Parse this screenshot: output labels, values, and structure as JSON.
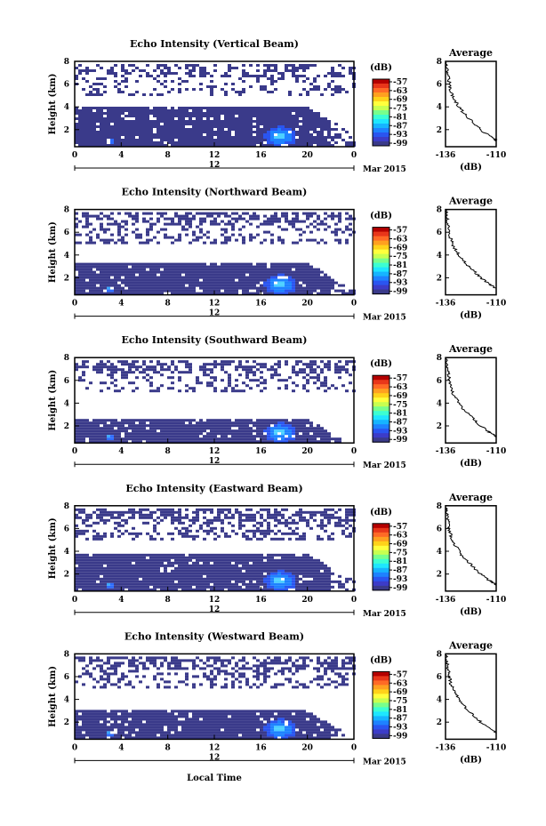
{
  "chart_data": {
    "type": "heatmap",
    "x_ticks": [
      "0",
      "4",
      "8",
      "12",
      "16",
      "20",
      "0"
    ],
    "y_ticks": [
      "8",
      "6",
      "4",
      "2"
    ],
    "day_label": "12",
    "month_label": "Mar 2015",
    "xlabel": "Local Time",
    "ylabel": "Height (km)",
    "colorbar": {
      "unit": "(dB)",
      "labels": [
        "-57",
        "-63",
        "-69",
        "-75",
        "-81",
        "-87",
        "-93",
        "-99"
      ],
      "colors": [
        "#b40000",
        "#e8361a",
        "#ff6a26",
        "#ffa020",
        "#ffd21a",
        "#ffff3c",
        "#c8ff50",
        "#78ff8c",
        "#3cffd2",
        "#1ee6ff",
        "#16b4ff",
        "#1e82ff",
        "#2a55f0",
        "#3c3cc8",
        "#3a3a8a"
      ]
    },
    "profile": {
      "title": "Average",
      "x_ticks": [
        "-136",
        "-110"
      ],
      "y_ticks": [
        "8",
        "6",
        "4",
        "2"
      ],
      "xlabel": "(dB)",
      "xlim": [
        -136,
        -110
      ],
      "ylim": [
        0.5,
        8
      ],
      "height": [
        1.0,
        1.2,
        1.5,
        2.0,
        2.5,
        3.0,
        3.5,
        4.0,
        4.5,
        5.0,
        5.5,
        6.0,
        6.5,
        7.0,
        7.5,
        8.0
      ],
      "value": [
        -110,
        -111,
        -114,
        -118,
        -121,
        -124,
        -127,
        -129,
        -131,
        -132.5,
        -133.5,
        -134,
        -134.5,
        -135,
        -135.5,
        -136
      ]
    },
    "ylim": [
      0.5,
      8
    ],
    "xlim": [
      0,
      24
    ],
    "panels": [
      {
        "title": "Echo Intensity (Vertical Beam)",
        "cloud_top": 4.0,
        "upper_density": 0.42
      },
      {
        "title": "Echo Intensity (Northward Beam)",
        "cloud_top": 3.3,
        "upper_density": 0.55
      },
      {
        "title": "Echo Intensity (Southward Beam)",
        "cloud_top": 2.6,
        "upper_density": 0.5
      },
      {
        "title": "Echo Intensity (Eastward Beam)",
        "cloud_top": 3.8,
        "upper_density": 0.6
      },
      {
        "title": "Echo Intensity (Westward Beam)",
        "cloud_top": 3.0,
        "upper_density": 0.55
      }
    ]
  }
}
